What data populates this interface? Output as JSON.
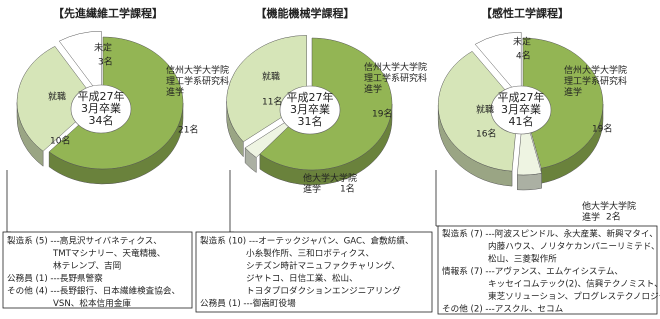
{
  "chart_data": [
    {
      "type": "pie",
      "title": "【先進繊維工学課程】",
      "center_label": "平成27年\n3月卒業\n34名",
      "categories": [
        "信州大学大学院\n理工学系研究科\n進学",
        "就職",
        "未定"
      ],
      "values": [
        21,
        10,
        3
      ],
      "value_labels": [
        "21名",
        "10名",
        "3名"
      ],
      "colors": [
        "#93b554",
        "#d6e5b8",
        "#ffffff"
      ],
      "notes": [
        "製造系 (5) ---高見沢サイバネティクス、",
        "TMTマシナリー、天竜精機、",
        "林テレンプ、吉岡",
        "公務員 (1) ---長野県警察",
        "その他 (4) ---長野銀行、日本繊維検査協会、",
        "VSN、松本信用金庫"
      ]
    },
    {
      "type": "pie",
      "title": "【機能機械学課程】",
      "center_label": "平成27年\n3月卒業\n31名",
      "categories": [
        "信州大学大学院\n理工学系研究科\n進学",
        "他大学大学院\n進学",
        "就職"
      ],
      "values": [
        19,
        1,
        11
      ],
      "value_labels": [
        "19名",
        "1名",
        "11名"
      ],
      "colors": [
        "#93b554",
        "#eef4e2",
        "#d6e5b8"
      ],
      "notes": [
        "製造系 (10) ---オーテックジャパン、GAC、倉敷紡績、",
        "小糸製作所、三和ロボティクス、",
        "シチズン時計マニュファクチャリング、",
        "ジヤトコ、日信工業、松山、",
        "トヨタプロダクションエンジニアリング",
        "公務員 (1) ---御嵩町役場"
      ]
    },
    {
      "type": "pie",
      "title": "【感性工学課程】",
      "center_label": "平成27年\n3月卒業\n41名",
      "categories": [
        "信州大学大学院\n理工学系研究科\n進学",
        "他大学大学院\n進学",
        "就職",
        "未定"
      ],
      "values": [
        19,
        2,
        16,
        4
      ],
      "value_labels": [
        "19名",
        "2名",
        "16名",
        "4名"
      ],
      "colors": [
        "#93b554",
        "#eef4e2",
        "#d6e5b8",
        "#ffffff"
      ],
      "notes": [
        "製造系 (7) ---阿波スピンドル、永大産業、新興マタイ、",
        "内藤ハウス、ノリタケカンパニーリミテド、",
        "松山、三菱製作所",
        "情報系 (7) ---アヴァンス、エムケイシステム、",
        "キッセイコムテック(2)、信興テクノミスト、",
        "東芝ソリューション、プログレステクノロジーズ",
        "その他 (2) ---アスクル、セコム"
      ]
    }
  ]
}
